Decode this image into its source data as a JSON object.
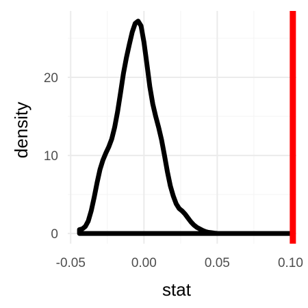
{
  "chart_data": {
    "type": "area",
    "title": "",
    "xlabel": "stat",
    "ylabel": "density",
    "xlim": [
      -0.052,
      0.104
    ],
    "ylim": [
      -1.3,
      28.5
    ],
    "grid": true,
    "x_ticks": [
      {
        "value": -0.05,
        "label": "-0.05"
      },
      {
        "value": 0.0,
        "label": "0.00"
      },
      {
        "value": 0.05,
        "label": "0.05"
      },
      {
        "value": 0.1,
        "label": "0.10"
      }
    ],
    "y_ticks": [
      {
        "value": 0,
        "label": "0"
      },
      {
        "value": 10,
        "label": "10"
      },
      {
        "value": 20,
        "label": "20"
      }
    ],
    "series": [
      {
        "x": [
          -0.044,
          -0.042,
          -0.04,
          -0.038,
          -0.036,
          -0.034,
          -0.032,
          -0.03,
          -0.028,
          -0.026,
          -0.024,
          -0.022,
          -0.02,
          -0.018,
          -0.016,
          -0.014,
          -0.012,
          -0.01,
          -0.008,
          -0.006,
          -0.004,
          -0.002,
          0.0,
          0.002,
          0.004,
          0.006,
          0.008,
          0.01,
          0.012,
          0.014,
          0.016,
          0.018,
          0.02,
          0.022,
          0.024,
          0.026,
          0.028,
          0.03,
          0.032,
          0.034,
          0.036,
          0.038,
          0.04,
          0.042,
          0.044,
          0.046,
          0.048,
          0.05,
          0.055,
          0.06,
          0.065,
          0.07,
          0.08,
          0.09,
          0.1
        ],
        "y": [
          0.5,
          0.6,
          0.9,
          1.6,
          2.9,
          4.6,
          6.5,
          8.2,
          9.4,
          10.3,
          11.1,
          12.1,
          13.6,
          15.6,
          18.0,
          20.5,
          22.5,
          24.2,
          25.8,
          26.9,
          27.2,
          26.6,
          24.5,
          21.7,
          18.8,
          16.6,
          15.0,
          13.6,
          12.0,
          10.0,
          7.9,
          6.1,
          4.8,
          3.8,
          3.2,
          2.9,
          2.5,
          2.0,
          1.5,
          1.1,
          0.8,
          0.6,
          0.4,
          0.25,
          0.15,
          0.1,
          0.05,
          0.02,
          0.0,
          0.0,
          0.0,
          0.0,
          0.0,
          0.0,
          0.0
        ]
      }
    ],
    "vline": {
      "x": 0.1016,
      "color": "#ff0000"
    },
    "line_color": "#000000",
    "grid_major_color": "#ebebeb",
    "grid_minor_color": "#f5f5f5"
  }
}
